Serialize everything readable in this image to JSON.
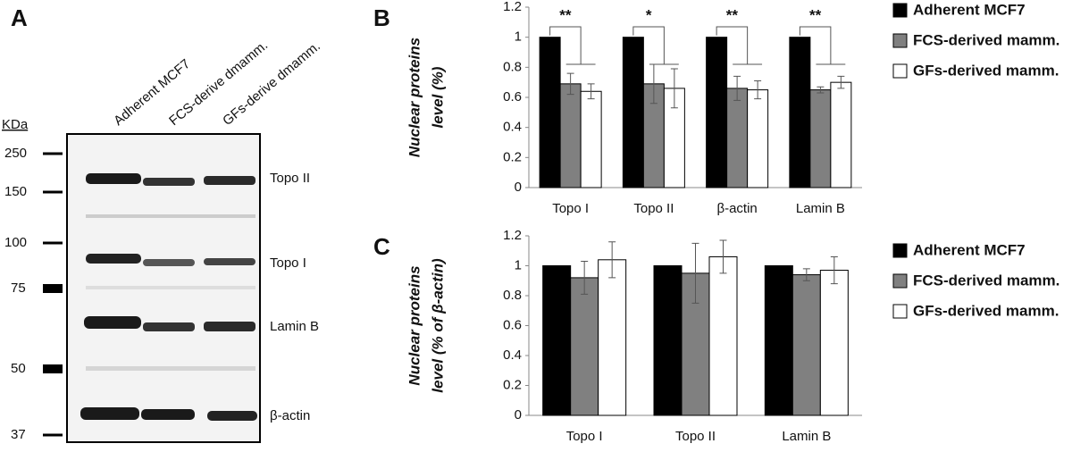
{
  "panel_a": {
    "label": "A",
    "unit": "KDa",
    "lanes": [
      "Adherent MCF7",
      "FCS-derive dmamm.",
      "GFs-derive dmamm."
    ],
    "markers": [
      "250",
      "150",
      "100",
      "75",
      "50",
      "37"
    ],
    "bands": [
      "Topo II",
      "Topo I",
      "Lamin B",
      "β-actin"
    ]
  },
  "chart_data": [
    {
      "type": "bar",
      "label": "B",
      "ylabel": [
        "Nuclear proteins",
        "level (%)"
      ],
      "categories": [
        "Topo I",
        "Topo II",
        "β-actin",
        "Lamin B"
      ],
      "series": [
        {
          "name": "Adherent MCF7",
          "color": "#000000",
          "values": [
            1,
            1,
            1,
            1
          ]
        },
        {
          "name": "FCS-derived mamm.",
          "color": "#808080",
          "values": [
            0.69,
            0.69,
            0.66,
            0.65
          ],
          "errors": [
            0.07,
            0.13,
            0.08,
            0.02
          ]
        },
        {
          "name": "GFs-derived mamm.",
          "color": "#ffffff",
          "values": [
            0.64,
            0.66,
            0.65,
            0.7
          ],
          "errors": [
            0.05,
            0.13,
            0.06,
            0.04
          ]
        }
      ],
      "annotations": [
        "**",
        "*",
        "**",
        "**"
      ],
      "ylim": [
        0,
        1.2
      ],
      "yticks": [
        0,
        0.2,
        0.4,
        0.6,
        0.8,
        1,
        1.2
      ],
      "grid": false
    },
    {
      "type": "bar",
      "label": "C",
      "ylabel": [
        "Nuclear proteins",
        "level (% of β-actin)"
      ],
      "categories": [
        "Topo I",
        "Topo II",
        "Lamin B"
      ],
      "series": [
        {
          "name": "Adherent MCF7",
          "color": "#000000",
          "values": [
            1,
            1,
            1
          ]
        },
        {
          "name": "FCS-derived mamm.",
          "color": "#808080",
          "values": [
            0.92,
            0.95,
            0.94
          ],
          "errors": [
            0.11,
            0.2,
            0.04
          ]
        },
        {
          "name": "GFs-derived mamm.",
          "color": "#ffffff",
          "values": [
            1.04,
            1.06,
            0.97
          ],
          "errors": [
            0.12,
            0.11,
            0.09
          ]
        }
      ],
      "ylim": [
        0,
        1.2
      ],
      "yticks": [
        0,
        0.2,
        0.4,
        0.6,
        0.8,
        1,
        1.2
      ],
      "grid": false
    }
  ]
}
